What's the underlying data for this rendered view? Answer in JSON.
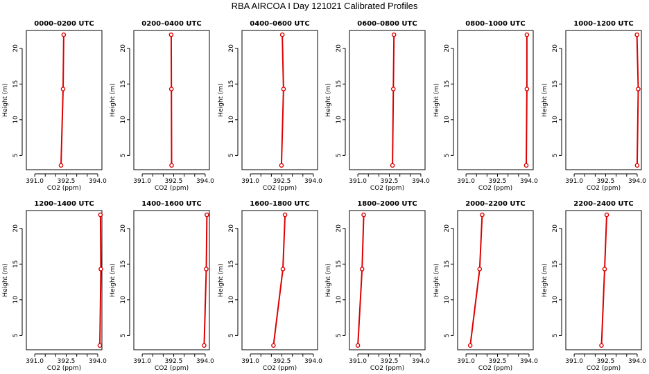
{
  "title": "RBA AIRCOA I  Day 121021  Calibrated Profiles",
  "chart_data": {
    "type": "line",
    "title": "RBA AIRCOA I  Day 121021  Calibrated Profiles",
    "xlabel": "CO2 (ppm)",
    "ylabel": "Height (m)",
    "xlim": [
      390.6,
      394.2
    ],
    "ylim": [
      3.0,
      22.5
    ],
    "x_ticks": [
      "391.0",
      "392.5",
      "394.0"
    ],
    "y_ticks": [
      "5",
      "10",
      "15",
      "20"
    ],
    "grid": false,
    "line_color": "#dd0000",
    "marker_color": "#dd0000",
    "heights": [
      3.6,
      14.3,
      21.9
    ],
    "panels": [
      {
        "title": "0000–0200 UTC",
        "co2": [
          392.25,
          392.35,
          392.38
        ]
      },
      {
        "title": "0200–0400 UTC",
        "co2": [
          392.4,
          392.39,
          392.38
        ]
      },
      {
        "title": "0400–0600 UTC",
        "co2": [
          392.48,
          392.58,
          392.52
        ]
      },
      {
        "title": "0600–0800 UTC",
        "co2": [
          392.65,
          392.69,
          392.72
        ]
      },
      {
        "title": "0800–1000 UTC",
        "co2": [
          393.87,
          393.9,
          393.9
        ]
      },
      {
        "title": "1000–1200 UTC",
        "co2": [
          394.0,
          394.05,
          393.99
        ]
      },
      {
        "title": "1200–1400 UTC",
        "co2": [
          394.1,
          394.15,
          394.13
        ]
      },
      {
        "title": "1400–1600 UTC",
        "co2": [
          393.95,
          394.05,
          394.08
        ]
      },
      {
        "title": "1600–1800 UTC",
        "co2": [
          392.1,
          392.55,
          392.65
        ]
      },
      {
        "title": "1800–2000 UTC",
        "co2": [
          391.0,
          391.2,
          391.28
        ]
      },
      {
        "title": "2000–2200 UTC",
        "co2": [
          391.2,
          391.65,
          391.77
        ]
      },
      {
        "title": "2200–2400 UTC",
        "co2": [
          392.3,
          392.45,
          392.55
        ]
      }
    ]
  }
}
